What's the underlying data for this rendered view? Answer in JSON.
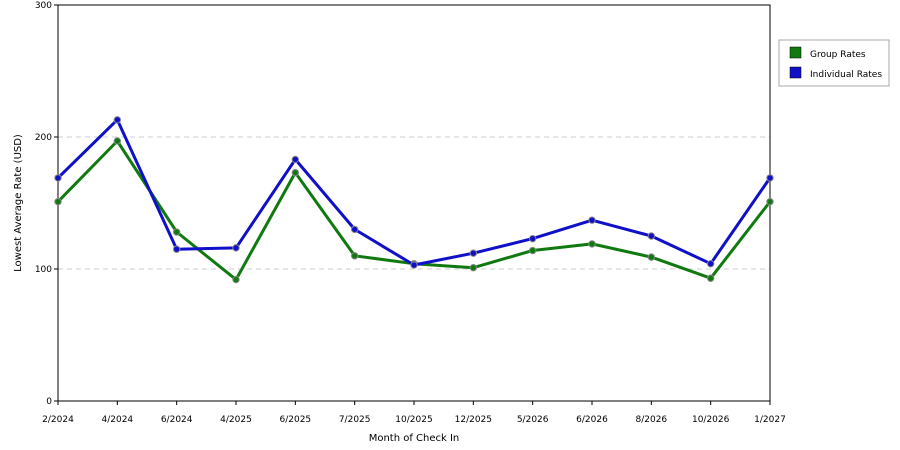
{
  "chart_data": {
    "type": "line",
    "title": "",
    "xlabel": "Month of Check In",
    "ylabel": "Lowest Average Rate (USD)",
    "ylim": [
      0,
      300
    ],
    "yticks": [
      0,
      100,
      200,
      300
    ],
    "grid": true,
    "legend_position": "top-right",
    "categories": [
      "2/2024",
      "4/2024",
      "6/2024",
      "4/2025",
      "6/2025",
      "7/2025",
      "10/2025",
      "12/2025",
      "5/2026",
      "6/2026",
      "8/2026",
      "10/2026",
      "1/2027"
    ],
    "series": [
      {
        "name": "Group Rates",
        "color": "#107a10",
        "values": [
          151,
          197,
          128,
          92,
          173,
          110,
          104,
          101,
          114,
          119,
          109,
          93,
          151
        ]
      },
      {
        "name": "Individual Rates",
        "color": "#1010c8",
        "values": [
          169,
          213,
          115,
          116,
          183,
          130,
          103,
          112,
          123,
          137,
          125,
          104,
          169
        ]
      }
    ]
  }
}
